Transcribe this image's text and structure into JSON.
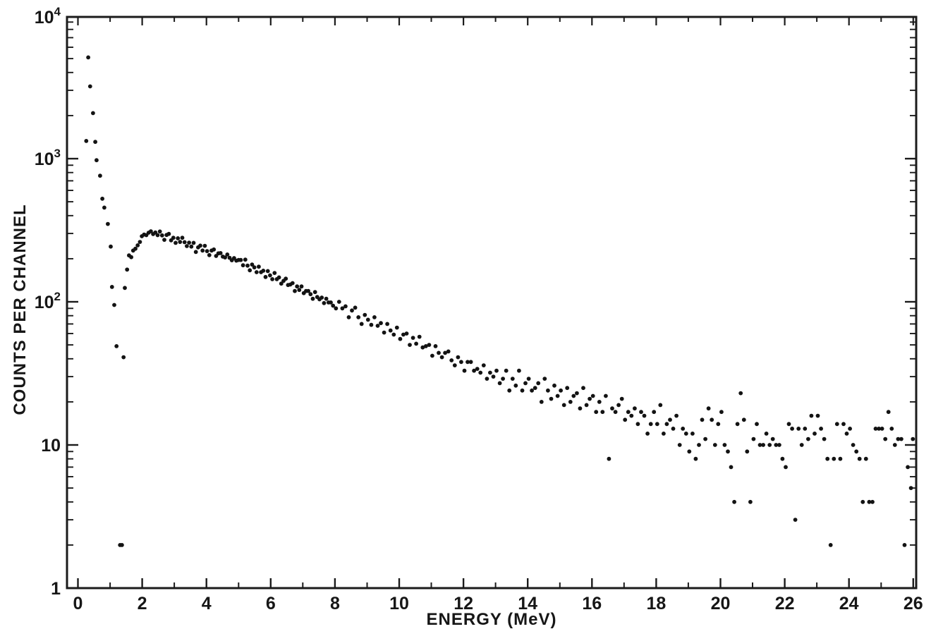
{
  "chart_data": {
    "type": "scatter",
    "title": "",
    "xlabel": "ENERGY (MeV)",
    "ylabel": "COUNTS PER CHANNEL",
    "x_scale": "linear",
    "y_scale": "log",
    "xlim": [
      0,
      26
    ],
    "ylim": [
      1,
      10000
    ],
    "grid": false,
    "legend": "none",
    "marker": {
      "shape": "dot",
      "color": "#131313",
      "radius_px": 2.9
    },
    "axis_color": "#1b1b1b",
    "x_major_ticks": [
      0,
      2,
      4,
      6,
      8,
      10,
      12,
      14,
      16,
      18,
      20,
      22,
      24,
      26
    ],
    "x_minor_ticks": [
      1,
      3,
      5,
      7,
      9,
      11,
      13,
      15,
      17,
      19,
      21,
      23,
      25
    ],
    "y_major_ticks": [
      {
        "label": "1",
        "exp": "",
        "value": 1
      },
      {
        "label": "10",
        "exp": "",
        "value": 10
      },
      {
        "label": "10",
        "exp": "2",
        "value": 100
      },
      {
        "label": "10",
        "exp": "3",
        "value": 1000
      },
      {
        "label": "10",
        "exp": "4",
        "value": 10000
      }
    ],
    "points": {
      "x": [
        0.26,
        0.32,
        0.38,
        0.47,
        0.54,
        0.58,
        0.69,
        0.76,
        0.82,
        0.93,
        1.02,
        1.06,
        1.13,
        1.2,
        1.31,
        1.37,
        1.42,
        1.46,
        1.53,
        1.59,
        1.66,
        1.72,
        1.79,
        1.86,
        1.93,
        1.99,
        2.06,
        2.13,
        2.2,
        2.27,
        2.34,
        2.41,
        2.48,
        2.55,
        2.62,
        2.69,
        2.76,
        2.83,
        2.9,
        2.97,
        3.04,
        3.11,
        3.18,
        3.25,
        3.32,
        3.39,
        3.46,
        3.53,
        3.6,
        3.67,
        3.74,
        3.81,
        3.88,
        3.95,
        4.02,
        4.09,
        4.16,
        4.23,
        4.3,
        4.37,
        4.44,
        4.51,
        4.58,
        4.65,
        4.72,
        4.79,
        4.86,
        4.93,
        5.0,
        5.07,
        5.14,
        5.21,
        5.28,
        5.35,
        5.42,
        5.49,
        5.56,
        5.63,
        5.7,
        5.77,
        5.84,
        5.91,
        5.98,
        6.05,
        6.12,
        6.19,
        6.26,
        6.33,
        6.4,
        6.47,
        6.54,
        6.61,
        6.68,
        6.75,
        6.82,
        6.89,
        6.96,
        7.03,
        7.1,
        7.17,
        7.24,
        7.31,
        7.38,
        7.45,
        7.52,
        7.59,
        7.66,
        7.73,
        7.8,
        7.87,
        7.94,
        8.03,
        8.13,
        8.23,
        8.33,
        8.43,
        8.53,
        8.63,
        8.73,
        8.83,
        8.93,
        9.03,
        9.13,
        9.23,
        9.33,
        9.43,
        9.53,
        9.63,
        9.73,
        9.83,
        9.93,
        10.03,
        10.13,
        10.23,
        10.33,
        10.43,
        10.53,
        10.63,
        10.73,
        10.83,
        10.93,
        11.03,
        11.13,
        11.23,
        11.33,
        11.43,
        11.53,
        11.63,
        11.73,
        11.83,
        11.93,
        12.03,
        12.13,
        12.23,
        12.33,
        12.43,
        12.53,
        12.63,
        12.73,
        12.83,
        12.93,
        13.03,
        13.13,
        13.23,
        13.33,
        13.43,
        13.53,
        13.63,
        13.73,
        13.83,
        13.93,
        14.03,
        14.13,
        14.23,
        14.33,
        14.43,
        14.53,
        14.63,
        14.73,
        14.83,
        14.93,
        15.03,
        15.13,
        15.23,
        15.33,
        15.43,
        15.53,
        15.63,
        15.73,
        15.83,
        15.93,
        16.03,
        16.13,
        16.23,
        16.33,
        16.43,
        16.53,
        16.63,
        16.73,
        16.83,
        16.93,
        17.03,
        17.13,
        17.23,
        17.33,
        17.43,
        17.53,
        17.63,
        17.73,
        17.83,
        17.93,
        18.03,
        18.13,
        18.23,
        18.33,
        18.43,
        18.53,
        18.63,
        18.73,
        18.83,
        18.93,
        19.03,
        19.13,
        19.23,
        19.33,
        19.43,
        19.53,
        19.63,
        19.73,
        19.83,
        19.93,
        20.03,
        20.13,
        20.23,
        20.33,
        20.43,
        20.53,
        20.63,
        20.73,
        20.83,
        20.93,
        21.03,
        21.13,
        21.23,
        21.33,
        21.43,
        21.53,
        21.63,
        21.73,
        21.83,
        21.93,
        22.03,
        22.13,
        22.23,
        22.33,
        22.43,
        22.53,
        22.63,
        22.73,
        22.83,
        22.93,
        23.03,
        23.13,
        23.23,
        23.33,
        23.43,
        23.53,
        23.63,
        23.73,
        23.83,
        23.93,
        24.03,
        24.13,
        24.23,
        24.33,
        24.43,
        24.53,
        24.63,
        24.73,
        24.83,
        24.93,
        25.03,
        25.13,
        25.23,
        25.33,
        25.43,
        25.53,
        25.63,
        25.73,
        25.83,
        25.93,
        25.99
      ],
      "y": [
        1330,
        5100,
        3200,
        2080,
        1310,
        975,
        760,
        525,
        455,
        350,
        243,
        127,
        95,
        49,
        2,
        2,
        41,
        125,
        168,
        211,
        205,
        228,
        235,
        248,
        262,
        287,
        295,
        292,
        304,
        311,
        297,
        305,
        292,
        310,
        291,
        271,
        293,
        298,
        269,
        280,
        258,
        278,
        262,
        280,
        261,
        245,
        259,
        243,
        258,
        223,
        240,
        247,
        228,
        246,
        226,
        212,
        228,
        232,
        209,
        218,
        219,
        207,
        204,
        214,
        203,
        195,
        202,
        194,
        196,
        196,
        180,
        197,
        179,
        166,
        182,
        174,
        161,
        176,
        161,
        165,
        149,
        164,
        153,
        144,
        159,
        144,
        148,
        134,
        140,
        145,
        131,
        132,
        135,
        119,
        128,
        121,
        128,
        115,
        119,
        119,
        113,
        105,
        117,
        108,
        104,
        107,
        98,
        105,
        99,
        99,
        94,
        90,
        100,
        90,
        93,
        78,
        87,
        91,
        78,
        70,
        81,
        75,
        69,
        78,
        68,
        71,
        61,
        70,
        63,
        59,
        66,
        55,
        59,
        60,
        50,
        56,
        51,
        57,
        48,
        49,
        50,
        42,
        49,
        44,
        41,
        44,
        45,
        39,
        36,
        41,
        38,
        33,
        38,
        38,
        33,
        34,
        32,
        36,
        29,
        32,
        30,
        33,
        27,
        29,
        33,
        24,
        29,
        26,
        33,
        24,
        27,
        29,
        24,
        25,
        27,
        20,
        29,
        24,
        21,
        26,
        22,
        24,
        19,
        25,
        20,
        22,
        23,
        18,
        25,
        19,
        21,
        22,
        17,
        20,
        17,
        22,
        8,
        18,
        17,
        19,
        21,
        15,
        17,
        16,
        18,
        14,
        17,
        16,
        12,
        14,
        17,
        14,
        19,
        12,
        14,
        15,
        13,
        16,
        10,
        13,
        12,
        9,
        12,
        8,
        10,
        15,
        11,
        18,
        15,
        10,
        14,
        17,
        10,
        9,
        7,
        4,
        14,
        23,
        15,
        9,
        4,
        11,
        14,
        10,
        10,
        12,
        10,
        11,
        10,
        10,
        8,
        7,
        14,
        13,
        3,
        13,
        10,
        13,
        11,
        16,
        12,
        16,
        13,
        11,
        8,
        2,
        8,
        14,
        8,
        14,
        12,
        13,
        10,
        9,
        8,
        4,
        8,
        4,
        4,
        13,
        13,
        13,
        11,
        17,
        13,
        10,
        11,
        11,
        2,
        7,
        5,
        11
      ]
    }
  }
}
